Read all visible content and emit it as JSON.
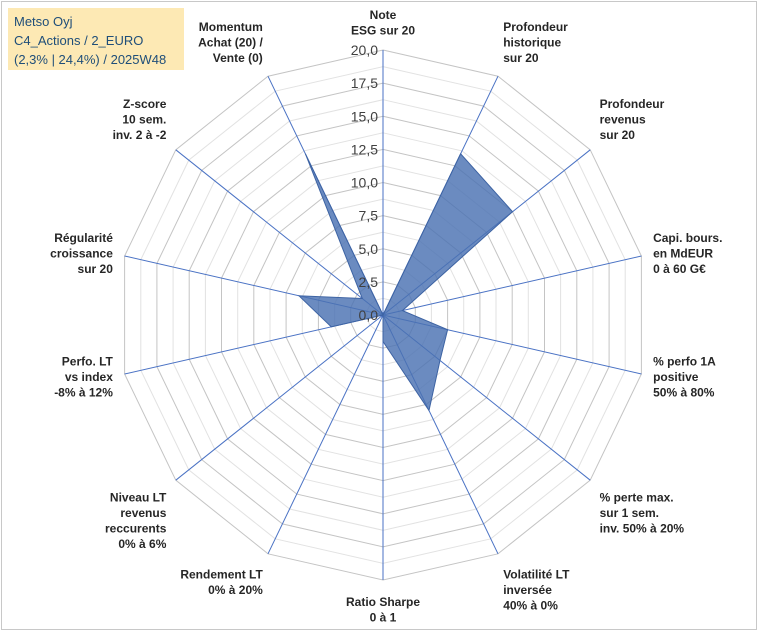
{
  "title_box": {
    "line1": "Metso Oyj",
    "line2": "C4_Actions / 2_EURO",
    "line3": "(2,3% | 24,4%) / 2025W48"
  },
  "chart_data": {
    "type": "radar",
    "title": "Metso Oyj",
    "r_range": [
      0,
      20
    ],
    "r_ticks": [
      "0,0",
      "2,5",
      "5,0",
      "7,5",
      "10,0",
      "12,5",
      "15,0",
      "17,5",
      "20,0"
    ],
    "grid": true,
    "series_color": "#4a72b2",
    "axes": [
      {
        "label": [
          "Note",
          "ESG sur 20"
        ],
        "value": 0
      },
      {
        "label": [
          "Profondeur",
          "historique",
          "sur 20"
        ],
        "value": 13.5
      },
      {
        "label": [
          "Profondeur",
          "revenus",
          "sur 20"
        ],
        "value": 12.5
      },
      {
        "label": [
          "Capi. bours.",
          "en MdEUR",
          "0 à 60 G€"
        ],
        "value": 1.5
      },
      {
        "label": [
          "% perfo 1A",
          "positive",
          "50% à 80%"
        ],
        "value": 5.0
      },
      {
        "label": [
          "% perte max.",
          "sur 1 sem.",
          "inv. 50% à 20%"
        ],
        "value": 5.5
      },
      {
        "label": [
          "Volatilité LT",
          "inversée",
          "40% à 0%"
        ],
        "value": 8.0
      },
      {
        "label": [
          "Ratio Sharpe",
          "0 à 1"
        ],
        "value": 2.0
      },
      {
        "label": [
          "Rendement LT",
          "0% à 20%"
        ],
        "value": 0
      },
      {
        "label": [
          "Niveau LT",
          "revenus",
          "reccurents",
          "0% à 6%"
        ],
        "value": 0
      },
      {
        "label": [
          "Perfo. LT",
          "vs index",
          "-8% à 12%"
        ],
        "value": 4.0
      },
      {
        "label": [
          "Régularité",
          "croissance",
          "sur 20"
        ],
        "value": 6.5
      },
      {
        "label": [
          "Z-score",
          "10 sem.",
          "inv. 2 à -2"
        ],
        "value": 2.0
      },
      {
        "label": [
          "Momentum",
          "Achat (20) /",
          "Vente (0)"
        ],
        "value": 13.5
      }
    ]
  }
}
